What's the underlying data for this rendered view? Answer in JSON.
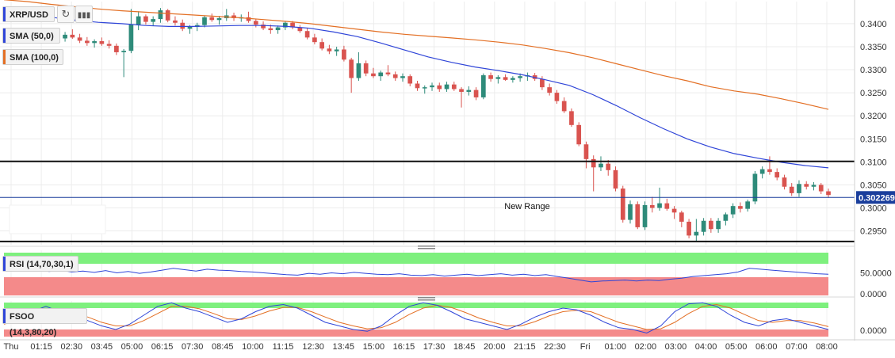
{
  "header": {
    "symbol": "XRP/USD",
    "refresh_icon": "refresh-icon",
    "interval_icon": "bar-interval-icon",
    "sma50_label": "SMA (50,0)",
    "sma100_label": "SMA (100,0)",
    "rsi_label": "RSI (14,70,30,1)",
    "fsoo_label": "FSOO (14,3,80,20)"
  },
  "annotation": "New Range",
  "last_price_label": "0.302269",
  "colors": {
    "up": "#2e8b7a",
    "down": "#d9534f",
    "sma50": "#2f45d8",
    "sma100": "#e36f24",
    "rsi_line": "#2f45d8",
    "overbought_zone": "#7ef07e",
    "oversold_zone": "#f48a8a",
    "last_price": "#1a3e9c"
  },
  "chart_data": [
    {
      "type": "candlestick",
      "title": "XRP/USD",
      "x_ticks": [
        "Thu",
        "01:15",
        "02:30",
        "03:45",
        "05:00",
        "06:15",
        "07:30",
        "08:45",
        "10:00",
        "11:15",
        "12:30",
        "13:45",
        "15:00",
        "16:15",
        "17:30",
        "18:45",
        "20:00",
        "21:15",
        "22:30",
        "Fri",
        "01:00",
        "02:00",
        "03:00",
        "04:00",
        "05:00",
        "06:00",
        "07:00",
        "08:00"
      ],
      "y_ticks": [
        "0.2950",
        "0.3000",
        "0.3050",
        "0.3100",
        "0.3150",
        "0.3200",
        "0.3250",
        "0.3300",
        "0.3350",
        "0.3400"
      ],
      "ylim": [
        0.292,
        0.3448
      ],
      "grid": true,
      "candles": [
        [
          0.3372,
          0.3378,
          0.3365,
          0.3368
        ],
        [
          0.3368,
          0.338,
          0.3362,
          0.3373
        ],
        [
          0.3373,
          0.3385,
          0.3364,
          0.3369
        ],
        [
          0.3369,
          0.3379,
          0.336,
          0.3375
        ],
        [
          0.3375,
          0.3388,
          0.3366,
          0.3368
        ],
        [
          0.3368,
          0.3383,
          0.3364,
          0.3378
        ],
        [
          0.3378,
          0.3386,
          0.3369,
          0.3372
        ],
        [
          0.3372,
          0.338,
          0.3362,
          0.3368
        ],
        [
          0.3368,
          0.3382,
          0.3361,
          0.3376
        ],
        [
          0.3376,
          0.3388,
          0.3367,
          0.337
        ],
        [
          0.337,
          0.3378,
          0.3358,
          0.3363
        ],
        [
          0.3363,
          0.3371,
          0.3352,
          0.3358
        ],
        [
          0.3358,
          0.3366,
          0.3348,
          0.3362
        ],
        [
          0.3362,
          0.337,
          0.3352,
          0.3356
        ],
        [
          0.3356,
          0.3364,
          0.3346,
          0.3352
        ],
        [
          0.3352,
          0.3357,
          0.3332,
          0.3338
        ],
        [
          0.3338,
          0.3345,
          0.3284,
          0.3341
        ],
        [
          0.3341,
          0.3432,
          0.3336,
          0.3398
        ],
        [
          0.3398,
          0.3427,
          0.3386,
          0.3416
        ],
        [
          0.3416,
          0.342,
          0.3398,
          0.3404
        ],
        [
          0.3404,
          0.3416,
          0.3396,
          0.341
        ],
        [
          0.341,
          0.3434,
          0.3402,
          0.3429
        ],
        [
          0.3429,
          0.3432,
          0.3403,
          0.3407
        ],
        [
          0.3407,
          0.3416,
          0.3396,
          0.3402
        ],
        [
          0.3402,
          0.3409,
          0.3384,
          0.3389
        ],
        [
          0.3389,
          0.3397,
          0.3378,
          0.3393
        ],
        [
          0.3393,
          0.3402,
          0.3384,
          0.3397
        ],
        [
          0.3397,
          0.3418,
          0.3392,
          0.3414
        ],
        [
          0.3414,
          0.3422,
          0.3404,
          0.3408
        ],
        [
          0.3408,
          0.3417,
          0.3398,
          0.3412
        ],
        [
          0.3412,
          0.3432,
          0.3406,
          0.3418
        ],
        [
          0.3418,
          0.3424,
          0.3406,
          0.3412
        ],
        [
          0.3412,
          0.342,
          0.3404,
          0.3414
        ],
        [
          0.3414,
          0.3426,
          0.3402,
          0.3406
        ],
        [
          0.3406,
          0.3411,
          0.3392,
          0.3398
        ],
        [
          0.3398,
          0.3405,
          0.3386,
          0.339
        ],
        [
          0.339,
          0.3398,
          0.3378,
          0.3386
        ],
        [
          0.3386,
          0.3396,
          0.3378,
          0.3392
        ],
        [
          0.3392,
          0.3406,
          0.3386,
          0.3402
        ],
        [
          0.3402,
          0.3406,
          0.3388,
          0.3392
        ],
        [
          0.3392,
          0.3397,
          0.338,
          0.3384
        ],
        [
          0.3384,
          0.339,
          0.3366,
          0.337
        ],
        [
          0.337,
          0.3378,
          0.3355,
          0.336
        ],
        [
          0.336,
          0.3368,
          0.3342,
          0.3346
        ],
        [
          0.3346,
          0.3354,
          0.3334,
          0.334
        ],
        [
          0.334,
          0.335,
          0.333,
          0.3344
        ],
        [
          0.3344,
          0.3352,
          0.3318,
          0.3322
        ],
        [
          0.3322,
          0.3326,
          0.325,
          0.3282
        ],
        [
          0.3282,
          0.3338,
          0.3276,
          0.3314
        ],
        [
          0.3314,
          0.332,
          0.3286,
          0.3292
        ],
        [
          0.3292,
          0.3304,
          0.3282,
          0.3286
        ],
        [
          0.3286,
          0.3298,
          0.3276,
          0.3294
        ],
        [
          0.3294,
          0.331,
          0.3286,
          0.329
        ],
        [
          0.329,
          0.3296,
          0.3276,
          0.3282
        ],
        [
          0.3282,
          0.3292,
          0.3274,
          0.3286
        ],
        [
          0.3286,
          0.329,
          0.3264,
          0.327
        ],
        [
          0.327,
          0.3276,
          0.3254,
          0.326
        ],
        [
          0.326,
          0.3266,
          0.3248,
          0.3262
        ],
        [
          0.3262,
          0.3272,
          0.3254,
          0.3266
        ],
        [
          0.3266,
          0.3272,
          0.3252,
          0.3258
        ],
        [
          0.3258,
          0.3274,
          0.3252,
          0.3268
        ],
        [
          0.3268,
          0.3274,
          0.3254,
          0.3258
        ],
        [
          0.3258,
          0.3262,
          0.3218,
          0.3252
        ],
        [
          0.3252,
          0.3264,
          0.3244,
          0.3256
        ],
        [
          0.3256,
          0.3262,
          0.3234,
          0.324
        ],
        [
          0.324,
          0.3292,
          0.3236,
          0.3288
        ],
        [
          0.3288,
          0.3294,
          0.3274,
          0.328
        ],
        [
          0.328,
          0.3288,
          0.327,
          0.3284
        ],
        [
          0.3284,
          0.329,
          0.3276,
          0.3278
        ],
        [
          0.3278,
          0.3286,
          0.3272,
          0.3282
        ],
        [
          0.3282,
          0.3292,
          0.3274,
          0.3286
        ],
        [
          0.3286,
          0.3294,
          0.3276,
          0.3288
        ],
        [
          0.3288,
          0.3293,
          0.3276,
          0.328
        ],
        [
          0.328,
          0.3286,
          0.3256,
          0.3262
        ],
        [
          0.3262,
          0.327,
          0.3244,
          0.325
        ],
        [
          0.325,
          0.3256,
          0.3226,
          0.3232
        ],
        [
          0.3232,
          0.324,
          0.3206,
          0.321
        ],
        [
          0.321,
          0.3216,
          0.3176,
          0.318
        ],
        [
          0.318,
          0.3186,
          0.3134,
          0.3138
        ],
        [
          0.3138,
          0.3144,
          0.3086,
          0.3106
        ],
        [
          0.3106,
          0.3114,
          0.3036,
          0.3088
        ],
        [
          0.3088,
          0.3112,
          0.308,
          0.3096
        ],
        [
          0.3096,
          0.3104,
          0.307,
          0.3082
        ],
        [
          0.3082,
          0.309,
          0.3036,
          0.3042
        ],
        [
          0.3042,
          0.3048,
          0.2968,
          0.2974
        ],
        [
          0.2974,
          0.3016,
          0.2966,
          0.3008
        ],
        [
          0.3008,
          0.3014,
          0.2954,
          0.2958
        ],
        [
          0.2958,
          0.3014,
          0.2952,
          0.3006
        ],
        [
          0.3006,
          0.3024,
          0.299,
          0.3
        ],
        [
          0.3,
          0.3044,
          0.2994,
          0.301
        ],
        [
          0.301,
          0.302,
          0.2994,
          0.2998
        ],
        [
          0.2998,
          0.3004,
          0.2976,
          0.299
        ],
        [
          0.299,
          0.2994,
          0.2958,
          0.297
        ],
        [
          0.297,
          0.2976,
          0.2934,
          0.294
        ],
        [
          0.294,
          0.2976,
          0.2928,
          0.2948
        ],
        [
          0.2948,
          0.2978,
          0.294,
          0.2972
        ],
        [
          0.2972,
          0.2978,
          0.2946,
          0.2954
        ],
        [
          0.2954,
          0.2978,
          0.2946,
          0.2972
        ],
        [
          0.2972,
          0.299,
          0.2962,
          0.2986
        ],
        [
          0.2986,
          0.301,
          0.2978,
          0.3004
        ],
        [
          0.3004,
          0.3012,
          0.299,
          0.2998
        ],
        [
          0.2998,
          0.3018,
          0.2992,
          0.3014
        ],
        [
          0.3014,
          0.308,
          0.3008,
          0.3074
        ],
        [
          0.3074,
          0.309,
          0.3064,
          0.3084
        ],
        [
          0.3084,
          0.3112,
          0.3072,
          0.3078
        ],
        [
          0.3078,
          0.3086,
          0.306,
          0.3066
        ],
        [
          0.3066,
          0.3072,
          0.304,
          0.3046
        ],
        [
          0.3046,
          0.3054,
          0.3026,
          0.3032
        ],
        [
          0.3032,
          0.306,
          0.3024,
          0.3052
        ],
        [
          0.3052,
          0.3058,
          0.304,
          0.3046
        ],
        [
          0.3046,
          0.3056,
          0.3038,
          0.305
        ],
        [
          0.305,
          0.3054,
          0.303,
          0.3036
        ],
        [
          0.3036,
          0.3042,
          0.3022,
          0.3028
        ]
      ],
      "sma50": [
        0.3425,
        0.342,
        0.3414,
        0.3408,
        0.3403,
        0.34,
        0.3396,
        0.3394,
        0.3394,
        0.3395,
        0.3396,
        0.3396,
        0.3394,
        0.339,
        0.3382,
        0.3372,
        0.3358,
        0.3343,
        0.3328,
        0.3316,
        0.3306,
        0.3298,
        0.3289,
        0.3278,
        0.3266,
        0.3246,
        0.3222,
        0.3196,
        0.3172,
        0.315,
        0.3132,
        0.3118,
        0.3108,
        0.3099,
        0.3092,
        0.3087
      ],
      "sma100": [
        0.3452,
        0.3448,
        0.3442,
        0.3437,
        0.3432,
        0.3428,
        0.3425,
        0.3422,
        0.3419,
        0.3416,
        0.3413,
        0.3409,
        0.3405,
        0.34,
        0.3394,
        0.3388,
        0.3382,
        0.3377,
        0.3373,
        0.3369,
        0.3365,
        0.336,
        0.3354,
        0.3346,
        0.3337,
        0.3326,
        0.3313,
        0.33,
        0.3287,
        0.3276,
        0.3263,
        0.3254,
        0.3247,
        0.3237,
        0.3226,
        0.3214
      ],
      "horizontal_lines": [
        0.3101,
        0.2927
      ],
      "last_price": 0.302269
    },
    {
      "type": "line",
      "title": "RSI (14,70,30,1)",
      "y_ticks": [
        "50.0000",
        "0.0000"
      ],
      "ylim": [
        0,
        100
      ],
      "overbought": 70,
      "oversold": 30,
      "values": [
        55,
        58,
        54,
        57,
        53,
        56,
        52,
        54,
        51,
        55,
        50,
        53,
        49,
        52,
        56,
        60,
        57,
        54,
        58,
        56,
        55,
        53,
        52,
        50,
        48,
        46,
        45,
        49,
        47,
        50,
        48,
        51,
        49,
        47,
        46,
        48,
        45,
        44,
        46,
        43,
        45,
        47,
        44,
        46,
        48,
        45,
        47,
        44,
        46,
        42,
        38,
        34,
        30,
        32,
        33,
        34,
        32,
        34,
        33,
        36,
        38,
        42,
        44,
        46,
        48,
        52,
        60,
        58,
        56,
        54,
        52,
        50,
        48,
        47
      ]
    },
    {
      "type": "line",
      "title": "FSOO (14,3,80,20)",
      "y_ticks": [
        "0.0000"
      ],
      "ylim": [
        0,
        100
      ],
      "overbought": 80,
      "oversold": 20,
      "k_values": [
        40,
        50,
        70,
        85,
        70,
        60,
        45,
        30,
        20,
        35,
        60,
        85,
        95,
        80,
        70,
        55,
        40,
        50,
        70,
        85,
        90,
        80,
        60,
        40,
        30,
        20,
        15,
        30,
        60,
        85,
        95,
        88,
        70,
        50,
        40,
        30,
        20,
        35,
        55,
        70,
        80,
        75,
        60,
        40,
        25,
        20,
        10,
        30,
        70,
        92,
        95,
        85,
        60,
        40,
        30,
        45,
        50,
        40,
        30,
        20
      ],
      "d_values": [
        35,
        45,
        60,
        75,
        75,
        65,
        55,
        40,
        30,
        30,
        45,
        65,
        85,
        85,
        78,
        65,
        50,
        48,
        58,
        72,
        82,
        82,
        70,
        55,
        40,
        30,
        22,
        25,
        40,
        62,
        80,
        88,
        82,
        68,
        52,
        40,
        30,
        30,
        42,
        58,
        70,
        74,
        70,
        55,
        40,
        30,
        20,
        22,
        40,
        65,
        85,
        90,
        80,
        62,
        45,
        40,
        45,
        45,
        38,
        28
      ]
    }
  ]
}
